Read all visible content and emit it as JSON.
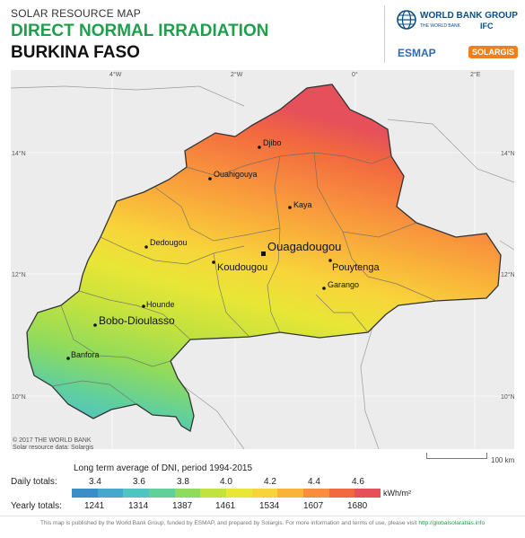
{
  "header": {
    "kicker": "SOLAR RESOURCE MAP",
    "title": "DIRECT NORMAL IRRADIATION",
    "country": "BURKINA FASO"
  },
  "logos": {
    "world_bank": "WORLD BANK GROUP",
    "world_bank_sub": "THE WORLD BANK",
    "ifc": "IFC",
    "esmap": "ESMAP",
    "solargis": "SOLARGIS"
  },
  "map": {
    "longitude_labels": [
      "4°W",
      "2°W",
      "0°",
      "2°E"
    ],
    "latitude_labels": [
      "14°N",
      "12°N",
      "10°N"
    ],
    "cities": [
      {
        "name": "Djibo",
        "capital": false
      },
      {
        "name": "Ouahigouya",
        "capital": false
      },
      {
        "name": "Kaya",
        "capital": false
      },
      {
        "name": "Dedougou",
        "capital": false
      },
      {
        "name": "Ouagadougou",
        "capital": true
      },
      {
        "name": "Koudougou",
        "capital": false
      },
      {
        "name": "Pouytenga",
        "capital": false
      },
      {
        "name": "Garango",
        "capital": false
      },
      {
        "name": "Hounde",
        "capital": false
      },
      {
        "name": "Bobo-Dioulasso",
        "capital": false
      },
      {
        "name": "Banfora",
        "capital": false
      }
    ],
    "copyright_line1": "© 2017 THE WORLD BANK",
    "copyright_line2": "Solar resource data: Solargis",
    "scale_label": "100 km"
  },
  "legend": {
    "caption": "Long term average of DNI, period 1994-2015",
    "daily_label": "Daily totals:",
    "yearly_label": "Yearly totals:",
    "daily_values": [
      "3.4",
      "3.6",
      "3.8",
      "4.0",
      "4.2",
      "4.4",
      "4.6"
    ],
    "yearly_values": [
      "1241",
      "1314",
      "1387",
      "1461",
      "1534",
      "1607",
      "1680"
    ],
    "unit": "kWh/m²",
    "colors": [
      "#3a8fc9",
      "#46a8cc",
      "#4fc4c3",
      "#62d09a",
      "#8fdb5c",
      "#c2e23f",
      "#e8e636",
      "#f7d53a",
      "#f9b33a",
      "#f78d3d",
      "#f2683f",
      "#e5505a"
    ]
  },
  "footer": {
    "text": "This map is published by the World Bank Group, funded by ESMAP, and prepared by Solargis. For more information and terms of use, please visit",
    "link": "http://globalsolaratlas.info"
  }
}
